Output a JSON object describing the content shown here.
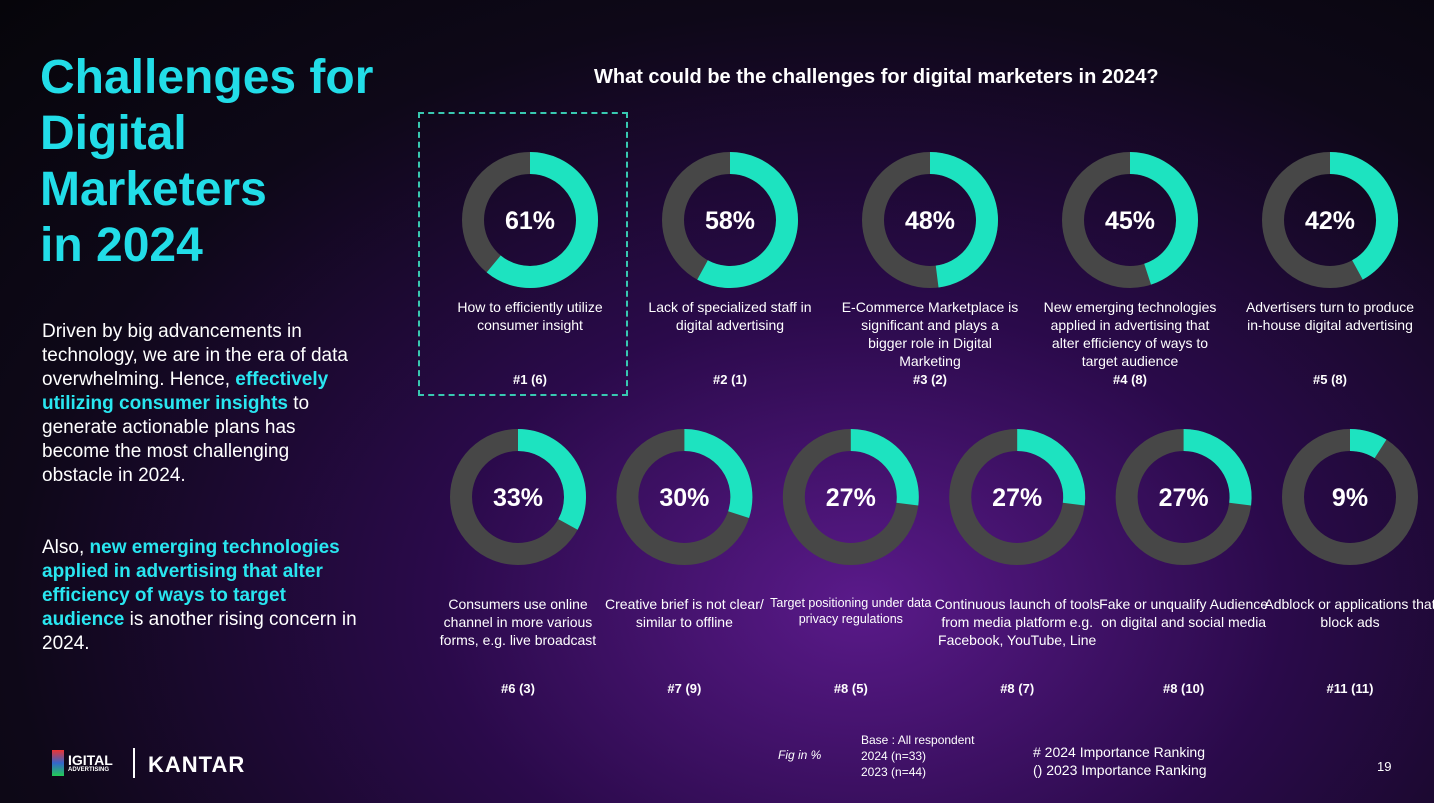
{
  "heading": [
    "Challenges for",
    "Digital",
    "Marketers",
    "in 2024"
  ],
  "paragraphs": [
    [
      {
        "text": "Driven by big advancements in technology, we are in the era of data overwhelming. Hence, "
      },
      {
        "text": "effectively utilizing consumer insights",
        "highlight": true
      },
      {
        "text": " to generate actionable plans has become the most challenging obstacle in 2024."
      }
    ],
    [
      {
        "text": "Also, "
      },
      {
        "text": "new emerging technologies applied in advertising that alter efficiency of ways to target audience",
        "highlight": true
      },
      {
        "text": " is another rising concern in 2024."
      }
    ]
  ],
  "chart_data": {
    "type": "donut",
    "title": "What could be the challenges for digital marketers in 2024?",
    "categories": [
      "How to efficiently utilize consumer insight",
      "Lack of specialized staff in digital advertising",
      "E-Commerce Marketplace is significant and plays a bigger role in Digital Marketing",
      "New emerging technologies applied in advertising that alter efficiency of ways to target audience",
      "Advertisers turn to produce in-house digital advertising",
      "Consumers use online channel in more various forms, e.g. live broadcast",
      "Creative brief is not clear/ similar to offline",
      "Target positioning under data privacy regulations",
      "Continuous launch of tools from media platform e.g. Facebook, YouTube, Line",
      "Fake or unqualify Audience on digital and social media",
      "Adblock or applications that block ads"
    ],
    "values": [
      61,
      58,
      48,
      45,
      42,
      33,
      30,
      27,
      27,
      27,
      9
    ],
    "value_labels": [
      "61%",
      "58%",
      "48%",
      "45%",
      "42%",
      "33%",
      "30%",
      "27%",
      "27%",
      "27%",
      "9%"
    ],
    "ranks": [
      "#1 (6)",
      "#2 (1)",
      "#3 (2)",
      "#4 (8)",
      "#5 (8)",
      "#6 (3)",
      "#7 (9)",
      "#8 (5)",
      "#8 (7)",
      "#8 (10)",
      "#11 (11)"
    ],
    "color": "#1de3c0",
    "track_color": "#474747"
  },
  "footer": {
    "logo_main": "IGITAL",
    "logo_sub": "ADVERTISING",
    "brand": "KANTAR",
    "unit_note": "Fig in %",
    "base": [
      "Base : All respondent",
      "2024 (n=33)",
      "2023 (n=44)"
    ],
    "legend": [
      "# 2024 Importance Ranking",
      "() 2023 Importance Ranking"
    ],
    "page": "19"
  }
}
